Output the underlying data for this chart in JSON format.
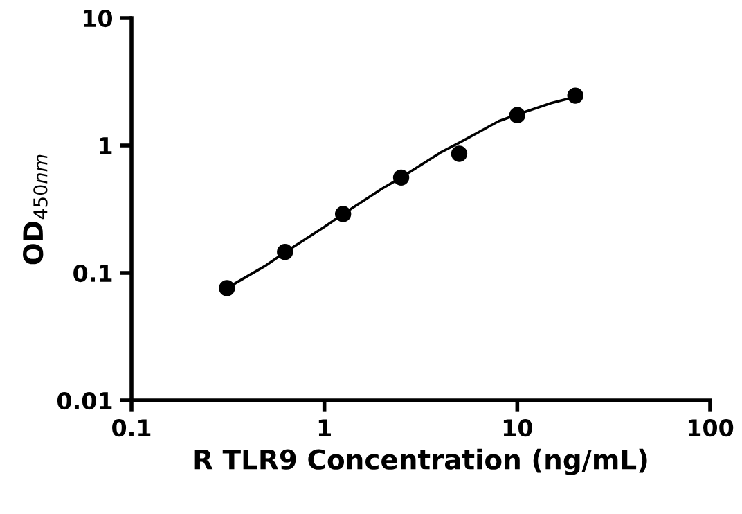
{
  "chart_data": {
    "type": "scatter",
    "xlabel": "R TLR9 Concentration (ng/mL)",
    "ylabel": "OD$_{450nm}$",
    "log": "xy",
    "grid": false,
    "legend": false,
    "xlim": [
      0.1,
      100
    ],
    "xticks": [
      0.1,
      1,
      10,
      100
    ],
    "ylim": [
      0.01,
      10
    ],
    "yticks": [
      0.01,
      0.1,
      1,
      10
    ],
    "series": [
      {
        "marker": "circle",
        "color": "#000000",
        "x": [
          0.3125,
          0.625,
          1.25,
          2.5,
          5,
          10,
          20
        ],
        "values": [
          0.076,
          0.146,
          0.29,
          0.56,
          0.86,
          1.73,
          2.46
        ]
      },
      {
        "type": "line",
        "marker": "none",
        "color": "#000000",
        "line_style": "solid",
        "x": [
          0.3125,
          0.5,
          0.625,
          1,
          1.25,
          2,
          2.5,
          4,
          5,
          8,
          10,
          15,
          20
        ],
        "values": [
          0.076,
          0.115,
          0.145,
          0.23,
          0.29,
          0.46,
          0.56,
          0.88,
          1.05,
          1.55,
          1.75,
          2.15,
          2.4
        ]
      }
    ]
  }
}
